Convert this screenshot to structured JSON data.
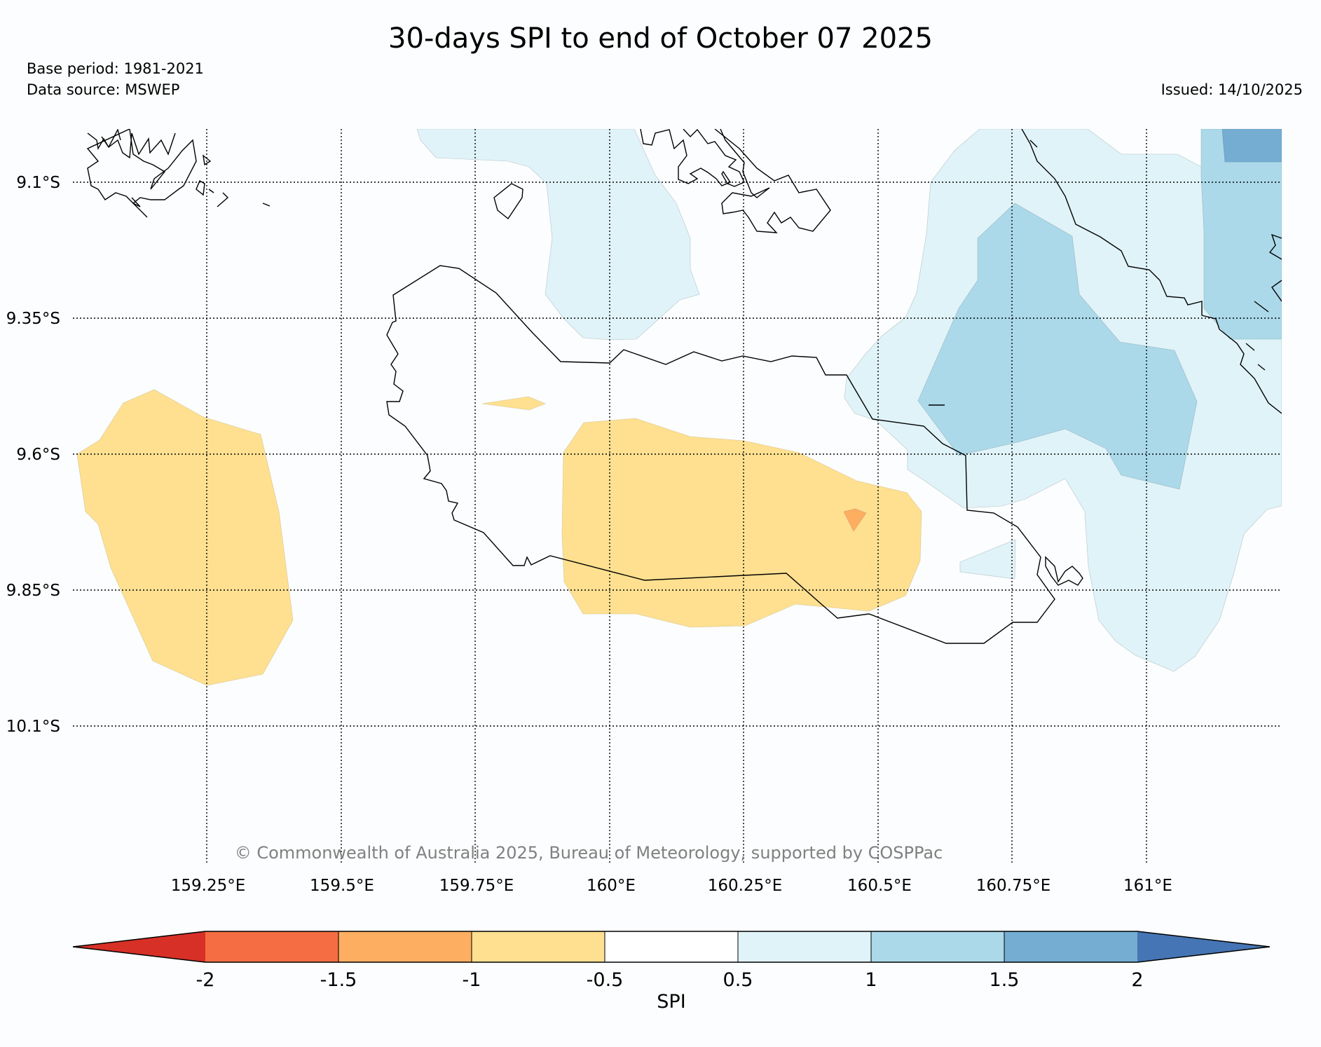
{
  "header": {
    "title": "30-days SPI to end of October 07 2025",
    "base_period": "Base period: 1981-2021",
    "data_source": "Data source: MSWEP",
    "issued": "Issued: 14/10/2025"
  },
  "map": {
    "lat_labels": [
      "9.1°S",
      "9.35°S",
      "9.6°S",
      "9.85°S",
      "10.1°S"
    ],
    "lon_labels": [
      "159.25°E",
      "159.5°E",
      "159.75°E",
      "160°E",
      "160.25°E",
      "160.5°E",
      "160.75°E",
      "161°E"
    ],
    "copyright": "© Commonwealth of Australia 2025, Bureau of Meteorology, supported by COSPPac",
    "colors": {
      "dry_extreme": "#d73027",
      "dry_severe": "#f46d43",
      "dry_moderate": "#fdae61",
      "dry_mild": "#fee090",
      "normal": "#ffffff",
      "wet_mild": "#e0f3f8",
      "wet_moderate": "#abd9e9",
      "wet_severe": "#74add1",
      "wet_extreme": "#4575b4"
    }
  },
  "colorbar": {
    "label": "SPI",
    "ticks": [
      "-2",
      "-1.5",
      "-1",
      "-0.5",
      "0.5",
      "1",
      "1.5",
      "2"
    ]
  }
}
